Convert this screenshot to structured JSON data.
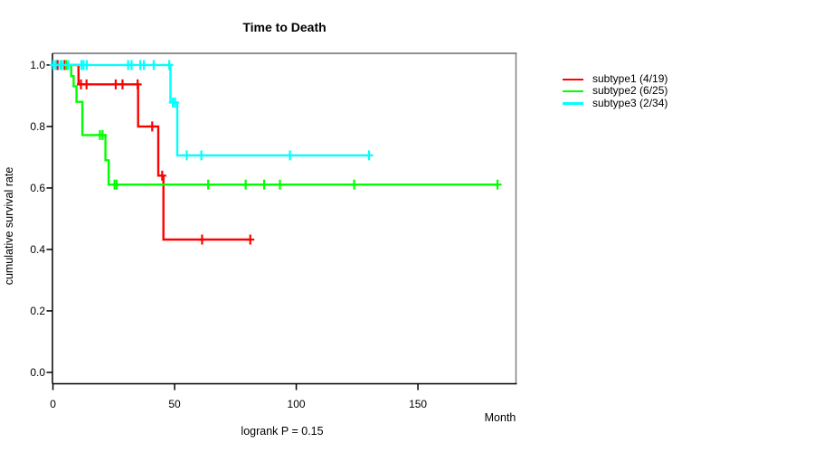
{
  "chart_data": {
    "type": "line",
    "subtype": "kaplan-meier-step",
    "title": "Time to Death",
    "xlabel": "Month",
    "ylabel": "cumulative survival rate",
    "footnote": "logrank P = 0.15",
    "xticks": [
      0,
      50,
      100,
      150
    ],
    "xtick_labels": [
      "0",
      "50",
      "100",
      "150"
    ],
    "yticks": [
      0.0,
      0.2,
      0.4,
      0.6,
      0.8,
      1.0
    ],
    "ytick_labels": [
      "0.0",
      "0.2",
      "0.4",
      "0.6",
      "0.8",
      "1.0"
    ],
    "xlim": [
      -0.2,
      190.3
    ],
    "ylim": [
      -0.037,
      1.038
    ],
    "grid": false,
    "legend_position": "right-outside",
    "axis_color": "#000000",
    "box_shadow_color": "#808080",
    "series": [
      {
        "key": "subtype1",
        "label": "subtype1 (4/19)",
        "color": "#ff0000",
        "points": [
          [
            0,
            1.0
          ],
          [
            10.5,
            0.937
          ],
          [
            35.0,
            0.8
          ],
          [
            43.3,
            0.64
          ],
          [
            45.4,
            0.432
          ]
        ],
        "end_time": 81.1,
        "censors": [
          [
            1.9,
            1.0
          ],
          [
            4.8,
            1.0
          ],
          [
            11.5,
            0.937
          ],
          [
            13.8,
            0.937
          ],
          [
            25.8,
            0.937
          ],
          [
            28.6,
            0.937
          ],
          [
            34.8,
            0.937
          ],
          [
            40.8,
            0.8
          ],
          [
            44.9,
            0.64
          ],
          [
            61.3,
            0.432
          ],
          [
            81.1,
            0.432
          ]
        ]
      },
      {
        "key": "subtype2",
        "label": "subtype2 (6/25)",
        "color": "#00ff00",
        "points": [
          [
            0,
            1.0
          ],
          [
            7.5,
            0.964
          ],
          [
            8.5,
            0.931
          ],
          [
            9.7,
            0.88
          ],
          [
            12.1,
            0.772
          ],
          [
            21.6,
            0.69
          ],
          [
            22.9,
            0.611
          ]
        ],
        "end_time": 182.7,
        "censors": [
          [
            5.4,
            1.0
          ],
          [
            19.3,
            0.772
          ],
          [
            20.4,
            0.772
          ],
          [
            25.3,
            0.611
          ],
          [
            26.2,
            0.611
          ],
          [
            63.8,
            0.611
          ],
          [
            79.2,
            0.611
          ],
          [
            86.8,
            0.611
          ],
          [
            93.3,
            0.611
          ],
          [
            123.8,
            0.611
          ],
          [
            182.7,
            0.611
          ]
        ]
      },
      {
        "key": "subtype3",
        "label": "subtype3 (2/34)",
        "color": "#00ffff",
        "points": [
          [
            0,
            1.0
          ],
          [
            48.3,
            0.878
          ],
          [
            51.1,
            0.706
          ]
        ],
        "end_time": 129.9,
        "censors": [
          [
            0.2,
            1.0
          ],
          [
            1.1,
            1.0
          ],
          [
            3.0,
            1.0
          ],
          [
            3.7,
            1.0
          ],
          [
            6.3,
            1.0
          ],
          [
            11.7,
            1.0
          ],
          [
            12.6,
            1.0
          ],
          [
            13.9,
            1.0
          ],
          [
            30.9,
            1.0
          ],
          [
            32.3,
            1.0
          ],
          [
            35.9,
            1.0
          ],
          [
            37.4,
            1.0
          ],
          [
            41.4,
            1.0
          ],
          [
            47.8,
            1.0
          ],
          [
            49.3,
            0.878
          ],
          [
            50.2,
            0.878
          ],
          [
            55.0,
            0.706
          ],
          [
            61.0,
            0.706
          ],
          [
            97.4,
            0.706
          ],
          [
            129.9,
            0.706
          ]
        ]
      }
    ]
  }
}
